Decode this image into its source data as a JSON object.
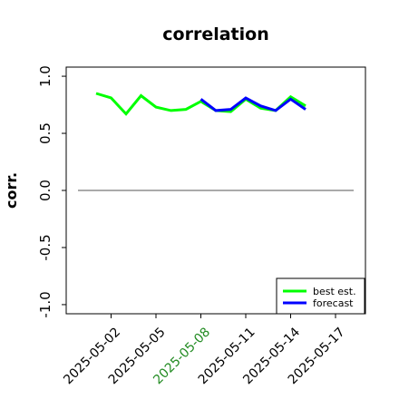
{
  "chart_data": {
    "type": "line",
    "title": "correlation",
    "xlabel": "",
    "ylabel": "corr.",
    "ylim": [
      -1.08,
      1.08
    ],
    "yticks": [
      -1.0,
      -0.5,
      0.0,
      0.5,
      1.0
    ],
    "ytick_labels": [
      "-1.0",
      "-0.5",
      "0.0",
      "0.5",
      "1.0"
    ],
    "xlim_dates": [
      "2025-04-29",
      "2025-05-19"
    ],
    "xticks": [
      {
        "date": "2025-05-02",
        "label": "2025-05-02",
        "color": "#000000"
      },
      {
        "date": "2025-05-05",
        "label": "2025-05-05",
        "color": "#000000"
      },
      {
        "date": "2025-05-08",
        "label": "2025-05-08",
        "color": "#228B22"
      },
      {
        "date": "2025-05-11",
        "label": "2025-05-11",
        "color": "#000000"
      },
      {
        "date": "2025-05-14",
        "label": "2025-05-14",
        "color": "#000000"
      },
      {
        "date": "2025-05-17",
        "label": "2025-05-17",
        "color": "#000000"
      }
    ],
    "zero_line": 0.0,
    "grid": false,
    "legend_position": "bottom-right",
    "series": [
      {
        "name": "best est.",
        "color": "#00ff00",
        "x": [
          "2025-05-01",
          "2025-05-02",
          "2025-05-03",
          "2025-05-04",
          "2025-05-05",
          "2025-05-06",
          "2025-05-07",
          "2025-05-08",
          "2025-05-09",
          "2025-05-10",
          "2025-05-11",
          "2025-05-12",
          "2025-05-13",
          "2025-05-14",
          "2025-05-15"
        ],
        "y": [
          0.85,
          0.81,
          0.67,
          0.83,
          0.73,
          0.7,
          0.71,
          0.78,
          0.7,
          0.69,
          0.8,
          0.72,
          0.7,
          0.82,
          0.74
        ]
      },
      {
        "name": "forecast",
        "color": "#0000ff",
        "x": [
          "2025-05-08",
          "2025-05-09",
          "2025-05-10",
          "2025-05-11",
          "2025-05-12",
          "2025-05-13",
          "2025-05-14",
          "2025-05-15"
        ],
        "y": [
          0.8,
          0.7,
          0.71,
          0.81,
          0.74,
          0.7,
          0.8,
          0.71
        ]
      }
    ]
  }
}
